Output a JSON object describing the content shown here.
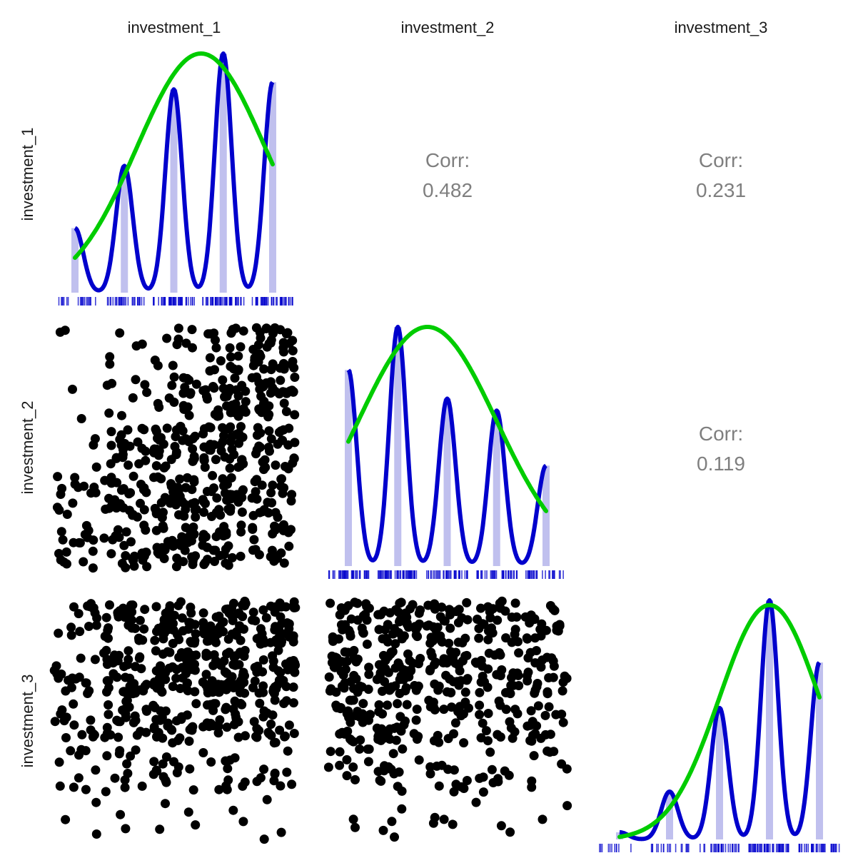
{
  "chart_data": {
    "type": "scatter",
    "variables": [
      "investment_1",
      "investment_2",
      "investment_3"
    ],
    "colors": {
      "density": "#0000cc",
      "normal": "#00cc00",
      "bars": "#c0c0ee",
      "rug": "#0000cc",
      "points": "#000000",
      "corr_text": "#7f7f7f"
    },
    "correlations": [
      {
        "row": 1,
        "col": 2,
        "label": "Corr:",
        "value": "0.482"
      },
      {
        "row": 1,
        "col": 3,
        "label": "Corr:",
        "value": "0.231"
      },
      {
        "row": 2,
        "col": 3,
        "label": "Corr:",
        "value": "0.119"
      }
    ],
    "diagonals": [
      {
        "variable": "investment_1",
        "levels": [
          1,
          2,
          3,
          4,
          5
        ],
        "bar_heights": [
          0.27,
          0.53,
          0.85,
          1.0,
          0.88
        ],
        "density_peaks": [
          0.27,
          0.53,
          0.85,
          1.0,
          0.88
        ],
        "normal": {
          "mean": 3.55,
          "sd": 1.3,
          "peak": 1.0
        }
      },
      {
        "variable": "investment_2",
        "levels": [
          1,
          2,
          3,
          4,
          5
        ],
        "bar_heights": [
          0.82,
          1.0,
          0.7,
          0.65,
          0.42
        ],
        "density_peaks": [
          0.82,
          1.0,
          0.7,
          0.65,
          0.42
        ],
        "normal": {
          "mean": 2.6,
          "sd": 1.4,
          "peak": 1.0
        }
      },
      {
        "variable": "investment_3",
        "levels": [
          1,
          2,
          3,
          4,
          5
        ],
        "bar_heights": [
          0.03,
          0.2,
          0.55,
          1.0,
          0.74
        ],
        "density_peaks": [
          0.03,
          0.2,
          0.55,
          1.0,
          0.74
        ],
        "normal": {
          "mean": 4.0,
          "sd": 1.0,
          "peak": 0.98
        }
      }
    ],
    "scatter_panels": [
      {
        "x": "investment_1",
        "y": "investment_2",
        "weights": [
          [
            18,
            25,
            35,
            28,
            22
          ],
          [
            14,
            30,
            40,
            33,
            24
          ],
          [
            3,
            22,
            35,
            40,
            30
          ],
          [
            2,
            8,
            18,
            38,
            35
          ],
          [
            2,
            5,
            10,
            22,
            38
          ]
        ]
      },
      {
        "x": "investment_1",
        "y": "investment_3",
        "weights": [
          [
            3,
            2,
            4,
            2,
            3
          ],
          [
            10,
            12,
            14,
            12,
            10
          ],
          [
            14,
            25,
            32,
            28,
            25
          ],
          [
            18,
            38,
            45,
            50,
            38
          ],
          [
            15,
            28,
            40,
            42,
            45
          ]
        ]
      },
      {
        "x": "investment_2",
        "y": "investment_3",
        "weights": [
          [
            2,
            4,
            4,
            3,
            2
          ],
          [
            12,
            14,
            12,
            10,
            8
          ],
          [
            30,
            30,
            20,
            18,
            18
          ],
          [
            38,
            45,
            35,
            28,
            25
          ],
          [
            30,
            40,
            32,
            28,
            20
          ]
        ]
      }
    ],
    "jitter": true,
    "xlabel": "",
    "ylabel": ""
  }
}
